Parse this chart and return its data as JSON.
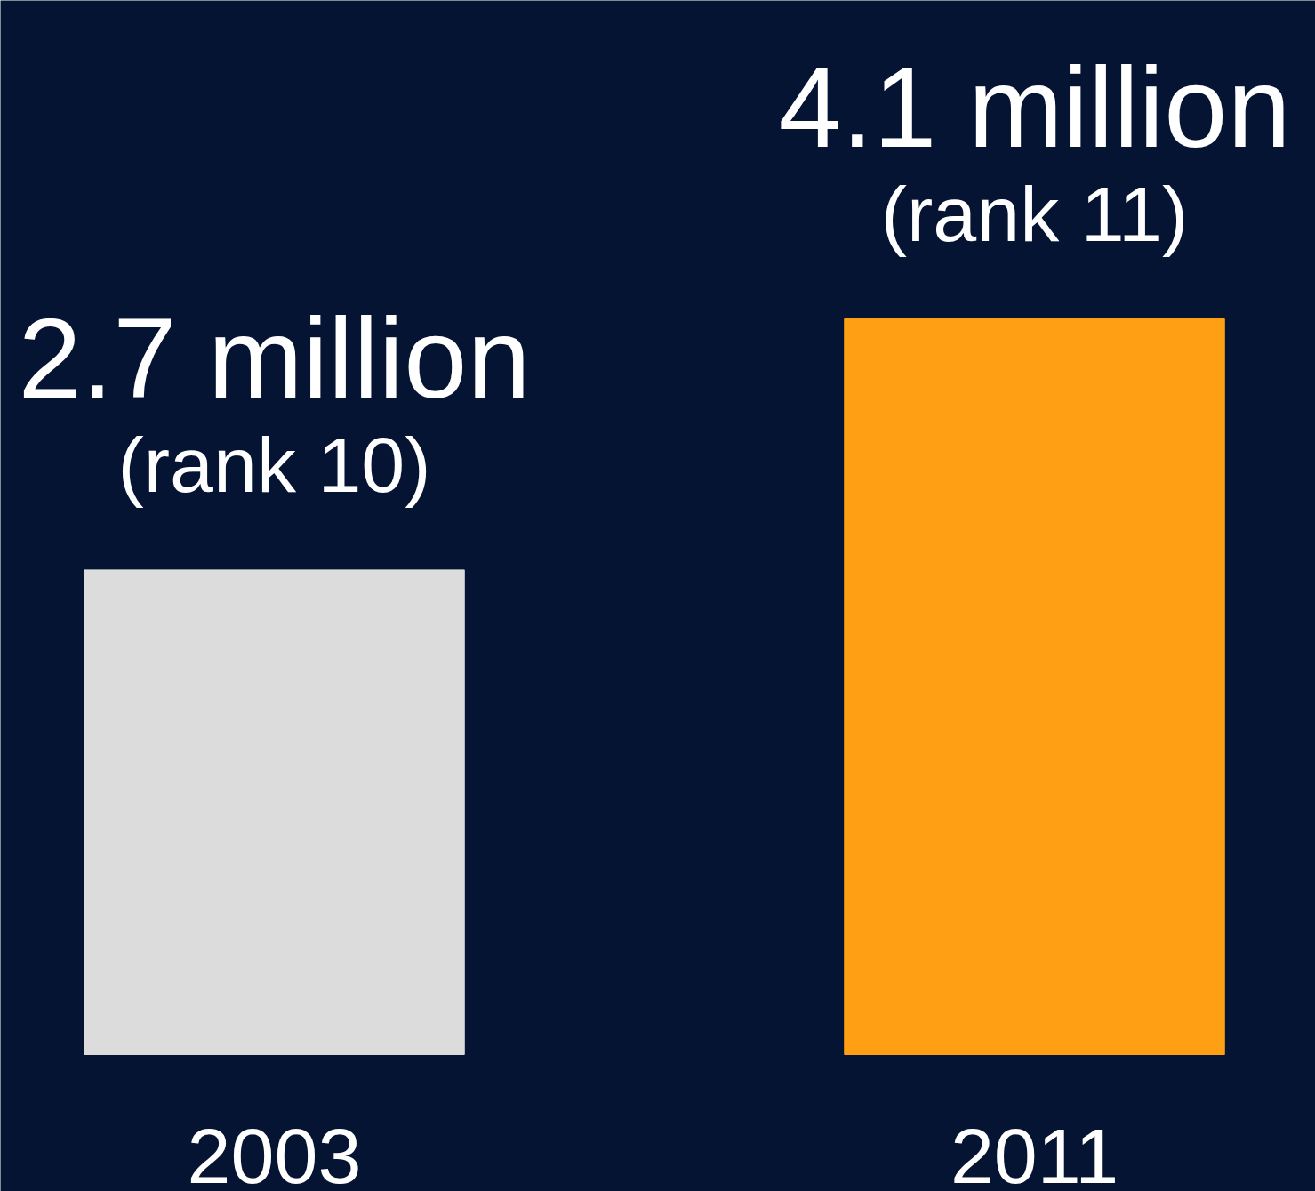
{
  "chart_data": {
    "type": "bar",
    "categories": [
      "2003",
      "2011"
    ],
    "values": [
      2.7,
      4.1
    ],
    "colors": [
      "#dcdcdc",
      "#ff9f14"
    ],
    "value_labels": [
      "2.7 million",
      "4.1 million"
    ],
    "annotations": [
      {
        "text": "(rank 10)",
        "x": "2003",
        "y": 2.7
      },
      {
        "text": "(rank 11)",
        "x": "2011",
        "y": 4.1
      }
    ],
    "grid": false
  }
}
